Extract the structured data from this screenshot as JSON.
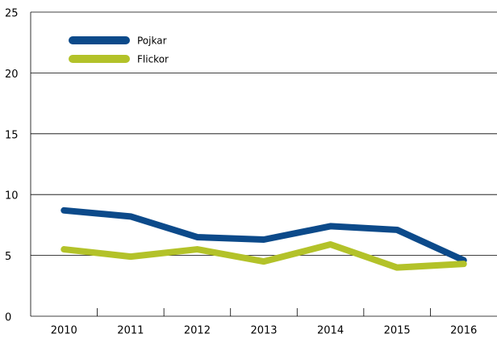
{
  "chart_data": {
    "type": "line",
    "categories": [
      "2010",
      "2011",
      "2012",
      "2013",
      "2014",
      "2015",
      "2016"
    ],
    "series": [
      {
        "name": "Pojkar",
        "color": "#0c4a8a",
        "values": [
          8.7,
          8.2,
          6.5,
          6.3,
          7.4,
          7.1,
          4.6
        ]
      },
      {
        "name": "Flickor",
        "color": "#b3c229",
        "values": [
          5.5,
          4.9,
          5.5,
          4.5,
          5.9,
          4.0,
          4.3
        ]
      }
    ],
    "ylim": [
      0,
      25
    ],
    "yticks": [
      0,
      5,
      10,
      15,
      20,
      25
    ],
    "grid": true,
    "legend": "top-left"
  }
}
